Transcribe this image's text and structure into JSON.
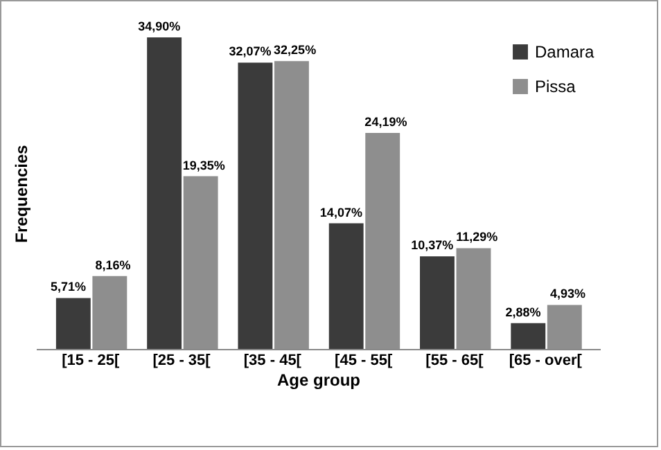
{
  "chart_data": {
    "type": "bar",
    "xlabel": "Age group",
    "ylabel": "Frequencies",
    "categories": [
      "[15 - 25[",
      "[25 - 35[",
      "[35 - 45[",
      "[45 - 55[",
      "[55 - 65[",
      "[65 - over["
    ],
    "series": [
      {
        "name": "Damara",
        "color": "#3b3b3b",
        "values": [
          5.71,
          34.9,
          32.07,
          14.07,
          10.37,
          2.88
        ],
        "value_labels": [
          "5,71%",
          "34,90%",
          "32,07%",
          "14,07%",
          "10,37%",
          "2,88%"
        ]
      },
      {
        "name": "Pissa",
        "color": "#8e8e8e",
        "values": [
          8.16,
          19.35,
          32.25,
          24.19,
          11.29,
          4.93
        ],
        "value_labels": [
          "8,16%",
          "19,35%",
          "32,25%",
          "24,19%",
          "11,29%",
          "4,93%"
        ]
      }
    ],
    "legend": "top right",
    "grid": false
  }
}
